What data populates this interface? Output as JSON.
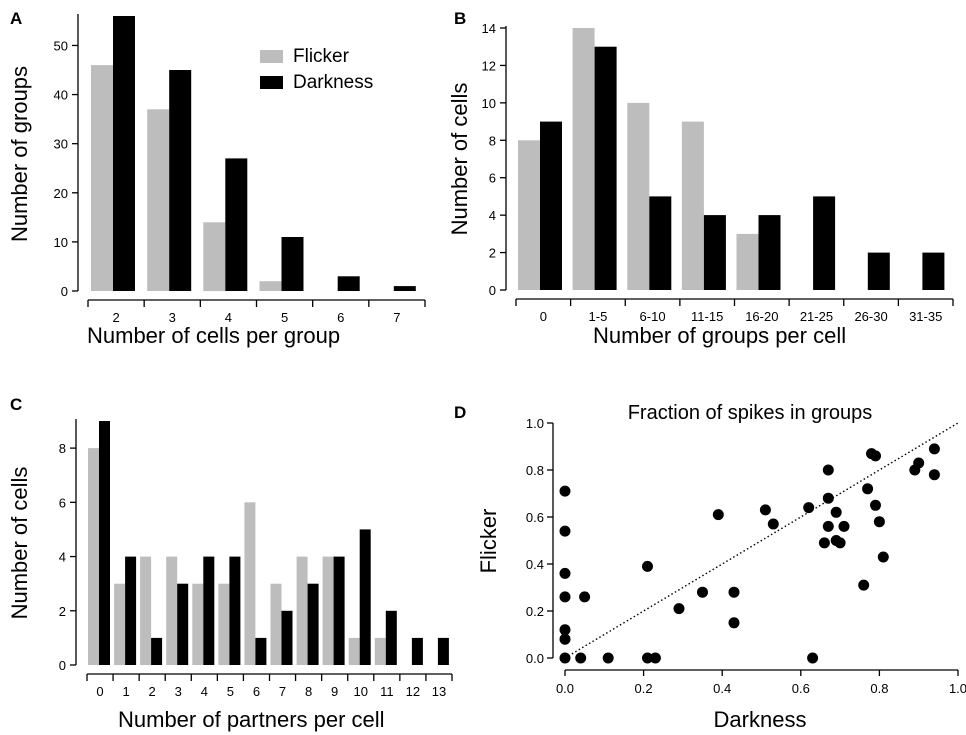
{
  "colors": {
    "flicker": "#bdbdbd",
    "darkness": "#000000"
  },
  "legend": {
    "items": [
      "Flicker",
      "Darkness"
    ]
  },
  "chart_data": [
    {
      "panel": "A",
      "type": "bar",
      "categories": [
        "2",
        "3",
        "4",
        "5",
        "6",
        "7"
      ],
      "series": [
        {
          "name": "Flicker",
          "values": [
            46,
            37,
            14,
            2,
            0,
            0
          ]
        },
        {
          "name": "Darkness",
          "values": [
            56,
            45,
            27,
            11,
            3,
            1
          ]
        }
      ],
      "xlabel": "Number of cells per group",
      "ylabel": "Number of groups",
      "ylim": [
        0,
        56
      ],
      "yticks": [
        0,
        10,
        20,
        30,
        40,
        50
      ],
      "legend": "top-right"
    },
    {
      "panel": "B",
      "type": "bar",
      "categories": [
        "0",
        "1-5",
        "6-10",
        "11-15",
        "16-20",
        "21-25",
        "26-30",
        "31-35"
      ],
      "series": [
        {
          "name": "Flicker",
          "values": [
            8,
            14,
            10,
            9,
            3,
            0,
            0,
            0
          ]
        },
        {
          "name": "Darkness",
          "values": [
            9,
            13,
            5,
            4,
            4,
            5,
            2,
            2
          ]
        }
      ],
      "xlabel": "Number of groups per cell",
      "ylabel": "Number of cells",
      "ylim": [
        0,
        14
      ],
      "yticks": [
        0,
        2,
        4,
        6,
        8,
        10,
        12,
        14
      ]
    },
    {
      "panel": "C",
      "type": "bar",
      "categories": [
        "0",
        "1",
        "2",
        "3",
        "4",
        "5",
        "6",
        "7",
        "8",
        "9",
        "10",
        "11",
        "12",
        "13"
      ],
      "series": [
        {
          "name": "Flicker",
          "values": [
            8,
            3,
            4,
            4,
            3,
            3,
            6,
            3,
            4,
            4,
            1,
            1,
            0,
            0
          ]
        },
        {
          "name": "Darkness",
          "values": [
            9,
            4,
            1,
            3,
            4,
            4,
            1,
            2,
            3,
            4,
            5,
            2,
            1,
            1
          ]
        }
      ],
      "xlabel": "Number of partners per cell",
      "ylabel": "Number of cells",
      "ylim": [
        0,
        9
      ],
      "yticks": [
        0,
        2,
        4,
        6,
        8
      ]
    },
    {
      "panel": "D",
      "type": "scatter",
      "title": "Fraction of spikes in groups",
      "xlabel": "Darkness",
      "ylabel": "Flicker",
      "xlim": [
        0,
        1
      ],
      "ylim": [
        0,
        1
      ],
      "xticks": [
        "0.0",
        "0.2",
        "0.4",
        "0.6",
        "0.8",
        "1.0"
      ],
      "yticks": [
        "0.0",
        "0.2",
        "0.4",
        "0.6",
        "0.8",
        "1.0"
      ],
      "points": [
        [
          0.0,
          0.71
        ],
        [
          0.0,
          0.54
        ],
        [
          0.0,
          0.36
        ],
        [
          0.0,
          0.26
        ],
        [
          0.0,
          0.12
        ],
        [
          0.0,
          0.08
        ],
        [
          0.0,
          0.0
        ],
        [
          0.04,
          0.0
        ],
        [
          0.05,
          0.26
        ],
        [
          0.11,
          0.0
        ],
        [
          0.21,
          0.39
        ],
        [
          0.21,
          0.0
        ],
        [
          0.23,
          0.0
        ],
        [
          0.29,
          0.21
        ],
        [
          0.35,
          0.28
        ],
        [
          0.39,
          0.61
        ],
        [
          0.43,
          0.28
        ],
        [
          0.43,
          0.15
        ],
        [
          0.51,
          0.63
        ],
        [
          0.53,
          0.57
        ],
        [
          0.62,
          0.64
        ],
        [
          0.63,
          0.0
        ],
        [
          0.66,
          0.49
        ],
        [
          0.67,
          0.8
        ],
        [
          0.67,
          0.68
        ],
        [
          0.67,
          0.56
        ],
        [
          0.69,
          0.62
        ],
        [
          0.69,
          0.5
        ],
        [
          0.7,
          0.49
        ],
        [
          0.71,
          0.56
        ],
        [
          0.76,
          0.31
        ],
        [
          0.77,
          0.72
        ],
        [
          0.78,
          0.87
        ],
        [
          0.79,
          0.86
        ],
        [
          0.79,
          0.65
        ],
        [
          0.8,
          0.58
        ],
        [
          0.81,
          0.43
        ],
        [
          0.89,
          0.8
        ],
        [
          0.9,
          0.83
        ],
        [
          0.94,
          0.89
        ],
        [
          0.94,
          0.78
        ]
      ],
      "fit_line": {
        "x": [
          0.0,
          1.0
        ],
        "y": [
          0.0,
          1.0
        ],
        "style": "dotted"
      }
    }
  ]
}
